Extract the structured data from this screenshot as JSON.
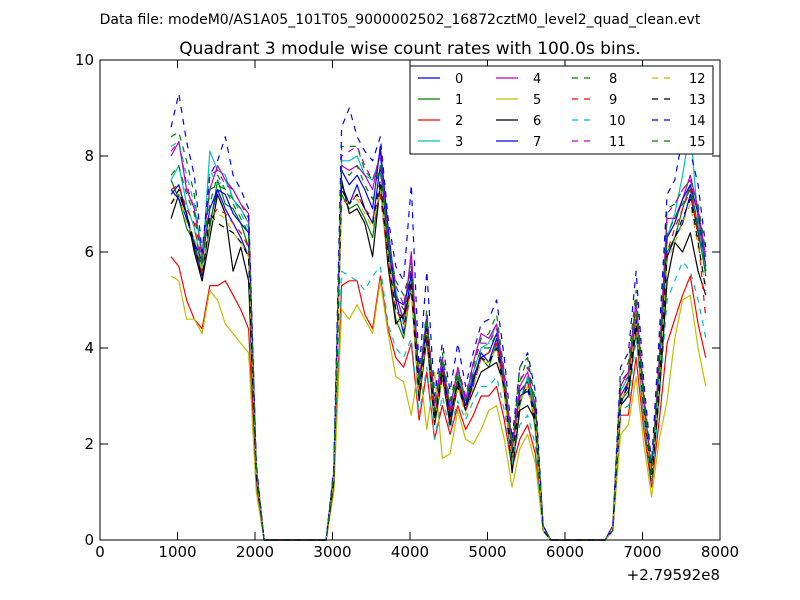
{
  "chart_data": {
    "type": "line",
    "suptitle": "Data file: modeM0/AS1A05_101T05_9000002502_16872cztM0_level2_quad_clean.evt",
    "title": "Quadrant 3 module wise count rates with 100.0s bins.",
    "xlabel": "",
    "ylabel": "",
    "x_offset_label": "+2.79592e8",
    "xlim": [
      0,
      8000
    ],
    "ylim": [
      0,
      10
    ],
    "xticks": [
      0,
      1000,
      2000,
      3000,
      4000,
      5000,
      6000,
      7000,
      8000
    ],
    "yticks": [
      0,
      2,
      4,
      6,
      8,
      10
    ],
    "grid": false,
    "legend_position": "top-right",
    "x": [
      917,
      1017,
      1117,
      1217,
      1317,
      1417,
      1517,
      1617,
      1717,
      1817,
      1917,
      2017,
      2117,
      2817,
      2917,
      3017,
      3117,
      3217,
      3317,
      3417,
      3517,
      3617,
      3717,
      3817,
      3917,
      4017,
      4117,
      4217,
      4317,
      4417,
      4517,
      4617,
      4717,
      4817,
      4917,
      5017,
      5117,
      5217,
      5317,
      5417,
      5517,
      5617,
      5717,
      5817,
      6517,
      6617,
      6717,
      6817,
      6917,
      7017,
      7117,
      7217,
      7317,
      7417,
      7517,
      7617,
      7717,
      7817
    ],
    "series": [
      {
        "name": "0",
        "color": "#0000ff",
        "dash": "solid",
        "values": [
          7.2,
          7.4,
          6.8,
          6.1,
          5.5,
          6.6,
          7.3,
          6.9,
          6.6,
          6.3,
          5.9,
          1.4,
          0.0,
          0.0,
          0.0,
          1.3,
          7.4,
          7.0,
          7.4,
          6.9,
          6.6,
          7.8,
          6.2,
          5.0,
          4.3,
          5.6,
          3.0,
          4.6,
          2.5,
          3.6,
          2.4,
          3.3,
          2.7,
          3.3,
          3.9,
          3.7,
          4.2,
          3.3,
          1.8,
          3.1,
          3.3,
          2.6,
          0.2,
          0.0,
          0.0,
          0.2,
          2.8,
          3.3,
          4.6,
          2.8,
          1.2,
          3.2,
          5.9,
          6.3,
          6.6,
          7.2,
          6.4,
          5.6
        ]
      },
      {
        "name": "1",
        "color": "#008000",
        "dash": "solid",
        "values": [
          7.5,
          7.1,
          6.5,
          6.2,
          5.6,
          6.5,
          7.5,
          7.0,
          6.9,
          6.6,
          6.1,
          1.4,
          0.0,
          0.0,
          0.0,
          1.3,
          7.2,
          6.9,
          7.0,
          6.7,
          6.3,
          7.4,
          6.0,
          4.6,
          4.2,
          5.3,
          3.1,
          4.3,
          2.6,
          3.5,
          2.5,
          3.4,
          2.8,
          3.4,
          3.8,
          3.6,
          4.1,
          3.2,
          1.9,
          2.8,
          3.4,
          2.3,
          0.2,
          0.0,
          0.0,
          0.2,
          2.9,
          3.1,
          4.5,
          2.7,
          1.3,
          3.4,
          6.0,
          6.3,
          6.9,
          7.4,
          6.5,
          5.5
        ]
      },
      {
        "name": "2",
        "color": "#ff0000",
        "dash": "solid",
        "values": [
          5.9,
          5.7,
          5.0,
          4.6,
          4.4,
          5.3,
          5.3,
          5.4,
          5.1,
          4.8,
          4.4,
          1.1,
          0.0,
          0.0,
          0.0,
          1.1,
          5.3,
          5.4,
          5.4,
          4.7,
          4.4,
          5.5,
          4.4,
          3.8,
          3.6,
          4.1,
          2.5,
          3.5,
          2.1,
          2.8,
          2.2,
          2.8,
          2.3,
          2.6,
          3.0,
          3.0,
          3.2,
          2.5,
          1.5,
          2.1,
          2.4,
          1.8,
          0.2,
          0.0,
          0.0,
          0.2,
          2.6,
          2.6,
          3.8,
          2.3,
          1.1,
          2.5,
          4.1,
          4.6,
          5.1,
          5.5,
          4.5,
          3.8
        ]
      },
      {
        "name": "3",
        "color": "#00bfbf",
        "dash": "solid",
        "values": [
          7.5,
          7.8,
          7.0,
          6.5,
          5.7,
          8.1,
          7.7,
          7.6,
          7.1,
          6.9,
          6.6,
          1.5,
          0.0,
          0.0,
          0.0,
          1.4,
          7.9,
          7.9,
          8.0,
          7.6,
          7.5,
          8.0,
          6.5,
          5.2,
          4.5,
          6.0,
          3.3,
          4.7,
          2.8,
          3.7,
          2.8,
          3.5,
          2.9,
          3.5,
          4.0,
          4.1,
          4.5,
          3.3,
          1.6,
          2.9,
          3.4,
          2.7,
          0.2,
          0.0,
          0.0,
          0.2,
          3.1,
          3.4,
          4.9,
          2.9,
          1.2,
          3.6,
          6.3,
          6.8,
          7.6,
          8.6,
          6.6,
          5.6
        ]
      },
      {
        "name": "4",
        "color": "#bf00bf",
        "dash": "solid",
        "values": [
          8.0,
          8.3,
          7.3,
          6.9,
          6.0,
          7.3,
          7.8,
          7.5,
          7.3,
          7.0,
          6.8,
          1.5,
          0.0,
          0.0,
          0.0,
          1.4,
          7.8,
          7.7,
          7.8,
          7.6,
          7.3,
          8.1,
          6.5,
          5.1,
          4.6,
          6.0,
          3.3,
          4.6,
          2.8,
          3.8,
          2.7,
          3.6,
          2.9,
          3.7,
          4.3,
          4.2,
          4.5,
          3.4,
          1.9,
          3.2,
          3.5,
          2.8,
          0.3,
          0.0,
          0.0,
          0.2,
          3.2,
          3.5,
          5.0,
          3.0,
          1.4,
          3.7,
          6.7,
          6.7,
          7.1,
          7.6,
          6.9,
          5.9
        ]
      },
      {
        "name": "5",
        "color": "#bfbf00",
        "dash": "solid",
        "values": [
          5.5,
          5.4,
          4.6,
          4.6,
          4.3,
          5.2,
          5.0,
          4.5,
          4.3,
          4.1,
          3.9,
          1.0,
          0.0,
          0.0,
          0.0,
          1.0,
          4.8,
          4.6,
          4.9,
          4.6,
          4.3,
          5.4,
          4.3,
          3.4,
          3.3,
          2.6,
          3.7,
          2.3,
          3.5,
          1.7,
          1.8,
          2.7,
          2.1,
          2.0,
          2.3,
          2.7,
          2.8,
          2.1,
          1.1,
          1.9,
          2.2,
          1.6,
          0.2,
          0.0,
          0.0,
          0.2,
          2.2,
          2.4,
          3.4,
          2.0,
          0.9,
          2.1,
          2.9,
          4.2,
          5.0,
          5.1,
          4.0,
          3.2
        ]
      },
      {
        "name": "6",
        "color": "#000000",
        "dash": "solid",
        "values": [
          6.7,
          7.2,
          6.8,
          6.0,
          5.4,
          6.3,
          7.2,
          6.8,
          5.6,
          6.1,
          5.4,
          1.3,
          0.0,
          0.0,
          0.0,
          1.2,
          7.5,
          6.8,
          6.9,
          6.6,
          5.9,
          7.4,
          5.7,
          4.5,
          4.7,
          5.2,
          2.9,
          4.2,
          2.4,
          3.4,
          2.4,
          3.2,
          2.7,
          3.1,
          3.5,
          3.6,
          3.7,
          3.2,
          1.4,
          2.7,
          2.8,
          2.5,
          0.2,
          0.0,
          0.0,
          0.2,
          2.8,
          3.0,
          4.4,
          2.6,
          1.2,
          3.0,
          5.4,
          6.2,
          6.0,
          6.4,
          5.6,
          5.1
        ]
      },
      {
        "name": "7",
        "color": "#0000ff",
        "dash": "solid",
        "values": [
          7.3,
          7.1,
          6.7,
          6.2,
          5.8,
          6.9,
          7.3,
          7.2,
          6.8,
          6.6,
          6.4,
          1.4,
          0.0,
          0.0,
          0.0,
          1.4,
          7.7,
          7.4,
          7.6,
          7.3,
          6.9,
          8.2,
          6.5,
          5.0,
          4.9,
          5.5,
          3.1,
          4.6,
          2.5,
          3.6,
          2.6,
          3.3,
          2.8,
          3.4,
          3.8,
          3.9,
          4.3,
          3.1,
          1.7,
          3.0,
          3.1,
          2.7,
          0.2,
          0.0,
          0.0,
          0.2,
          3.0,
          3.3,
          4.6,
          2.8,
          1.3,
          3.4,
          6.3,
          6.6,
          7.1,
          7.4,
          6.8,
          5.7
        ]
      },
      {
        "name": "8",
        "color": "#008000",
        "dash": "dashed",
        "values": [
          8.4,
          8.5,
          7.9,
          7.2,
          5.8,
          7.0,
          7.6,
          7.3,
          7.1,
          6.9,
          6.6,
          1.5,
          0.0,
          0.0,
          0.0,
          1.4,
          8.2,
          8.2,
          8.2,
          7.7,
          7.5,
          7.7,
          6.2,
          5.4,
          5.1,
          5.7,
          3.3,
          4.8,
          2.8,
          3.9,
          2.9,
          3.6,
          3.0,
          3.6,
          4.2,
          4.3,
          4.7,
          3.5,
          2.0,
          3.3,
          3.8,
          2.9,
          0.3,
          0.0,
          0.0,
          0.3,
          3.4,
          3.7,
          5.2,
          3.1,
          1.5,
          4.0,
          6.9,
          7.0,
          7.3,
          7.5,
          7.0,
          6.0
        ]
      },
      {
        "name": "9",
        "color": "#ff0000",
        "dash": "dashed",
        "values": [
          7.3,
          7.4,
          6.9,
          6.6,
          5.5,
          6.7,
          6.9,
          6.8,
          6.6,
          6.4,
          6.1,
          1.4,
          0.0,
          0.0,
          0.0,
          1.3,
          7.1,
          7.0,
          7.2,
          6.9,
          6.7,
          7.2,
          5.8,
          4.8,
          4.5,
          5.3,
          3.0,
          4.3,
          2.5,
          3.5,
          2.5,
          3.3,
          2.7,
          3.2,
          3.8,
          3.9,
          4.1,
          3.1,
          1.8,
          3.0,
          3.3,
          2.6,
          0.2,
          0.0,
          0.0,
          0.2,
          3.0,
          3.3,
          4.7,
          2.8,
          1.3,
          3.5,
          6.0,
          6.5,
          6.9,
          7.3,
          6.3,
          4.6
        ]
      },
      {
        "name": "10",
        "color": "#00bfbf",
        "dash": "dashed",
        "values": [
          8.2,
          8.3,
          7.6,
          7.0,
          5.9,
          7.7,
          7.4,
          7.5,
          7.1,
          6.8,
          6.5,
          1.5,
          0.0,
          0.0,
          0.0,
          1.4,
          5.6,
          5.5,
          5.4,
          5.2,
          5.5,
          5.7,
          4.5,
          4.0,
          3.8,
          4.2,
          2.6,
          3.6,
          2.1,
          3.0,
          2.3,
          2.9,
          2.5,
          2.9,
          3.2,
          3.2,
          3.4,
          2.7,
          1.6,
          2.4,
          2.6,
          2.0,
          0.2,
          0.0,
          0.0,
          0.2,
          2.7,
          2.8,
          4.2,
          2.5,
          1.2,
          2.9,
          5.0,
          5.4,
          5.8,
          5.6,
          5.0,
          4.2
        ]
      },
      {
        "name": "11",
        "color": "#bf00bf",
        "dash": "dashed",
        "values": [
          8.1,
          8.3,
          7.4,
          6.9,
          5.9,
          7.6,
          7.7,
          7.4,
          7.3,
          7.0,
          6.7,
          1.5,
          0.0,
          0.0,
          0.0,
          1.4,
          8.0,
          8.1,
          8.2,
          7.8,
          7.5,
          8.0,
          6.4,
          5.3,
          4.9,
          5.8,
          3.3,
          4.7,
          2.8,
          3.8,
          2.8,
          3.6,
          3.0,
          3.7,
          4.1,
          4.1,
          4.4,
          3.4,
          1.9,
          3.3,
          3.6,
          2.8,
          0.3,
          0.0,
          0.0,
          0.3,
          3.3,
          3.5,
          5.0,
          3.0,
          1.4,
          3.8,
          6.8,
          7.0,
          7.3,
          7.5,
          6.8,
          5.7
        ]
      },
      {
        "name": "12",
        "color": "#bfbf00",
        "dash": "dashed",
        "values": [
          7.0,
          7.2,
          6.6,
          6.3,
          5.6,
          6.6,
          6.8,
          6.7,
          6.4,
          6.2,
          5.9,
          1.4,
          0.0,
          0.0,
          0.0,
          1.3,
          7.1,
          7.0,
          7.1,
          6.8,
          6.5,
          7.3,
          5.9,
          4.7,
          4.4,
          5.2,
          3.0,
          4.3,
          2.5,
          3.4,
          2.5,
          3.2,
          2.6,
          3.2,
          3.7,
          3.7,
          4.0,
          3.0,
          1.7,
          2.9,
          3.2,
          2.5,
          0.2,
          0.0,
          0.0,
          0.2,
          2.9,
          3.2,
          4.5,
          2.7,
          1.3,
          3.3,
          5.8,
          6.2,
          6.6,
          7.0,
          6.1,
          5.3
        ]
      },
      {
        "name": "13",
        "color": "#000000",
        "dash": "dashed",
        "values": [
          7.0,
          7.3,
          6.8,
          6.2,
          5.4,
          6.8,
          6.6,
          6.5,
          6.4,
          6.2,
          5.9,
          1.4,
          0.0,
          0.0,
          0.0,
          1.3,
          7.3,
          7.0,
          7.2,
          6.9,
          6.6,
          7.5,
          5.9,
          4.8,
          4.6,
          5.4,
          3.0,
          4.4,
          2.5,
          3.5,
          2.5,
          3.3,
          2.7,
          3.3,
          3.8,
          3.7,
          4.0,
          3.1,
          1.7,
          2.9,
          3.2,
          2.5,
          0.2,
          0.0,
          0.0,
          0.2,
          2.9,
          3.2,
          4.5,
          2.8,
          1.3,
          3.3,
          5.9,
          6.3,
          6.7,
          7.1,
          6.2,
          5.2
        ]
      },
      {
        "name": "14",
        "color": "#0000ff",
        "dash": "dashed",
        "values": [
          8.6,
          9.3,
          8.3,
          7.6,
          6.0,
          7.6,
          7.9,
          8.4,
          7.6,
          7.3,
          6.9,
          1.6,
          0.0,
          0.0,
          0.0,
          1.5,
          8.6,
          9.0,
          8.4,
          8.1,
          7.9,
          8.4,
          6.7,
          5.7,
          5.4,
          7.4,
          3.5,
          5.6,
          3.0,
          4.1,
          3.1,
          4.1,
          3.2,
          3.9,
          4.5,
          4.6,
          5.0,
          3.8,
          2.1,
          3.6,
          3.9,
          3.1,
          0.3,
          0.0,
          0.0,
          0.3,
          3.6,
          3.9,
          5.6,
          3.3,
          1.6,
          4.3,
          7.2,
          7.5,
          8.4,
          8.1,
          7.4,
          6.1
        ]
      },
      {
        "name": "15",
        "color": "#008000",
        "dash": "dashed",
        "values": [
          7.6,
          7.8,
          7.2,
          6.8,
          5.7,
          7.3,
          7.4,
          7.3,
          7.0,
          6.7,
          6.4,
          1.5,
          0.0,
          0.0,
          0.0,
          1.4,
          7.7,
          7.6,
          7.8,
          7.4,
          7.1,
          7.8,
          6.3,
          5.1,
          4.8,
          5.7,
          3.2,
          4.6,
          2.7,
          3.7,
          2.7,
          3.5,
          2.9,
          3.5,
          4.0,
          4.0,
          4.3,
          3.3,
          1.9,
          3.6,
          3.8,
          2.7,
          0.3,
          0.0,
          0.0,
          0.2,
          3.2,
          3.4,
          4.9,
          2.9,
          1.4,
          3.6,
          6.4,
          6.7,
          7.0,
          7.3,
          6.6,
          5.6
        ]
      }
    ]
  }
}
